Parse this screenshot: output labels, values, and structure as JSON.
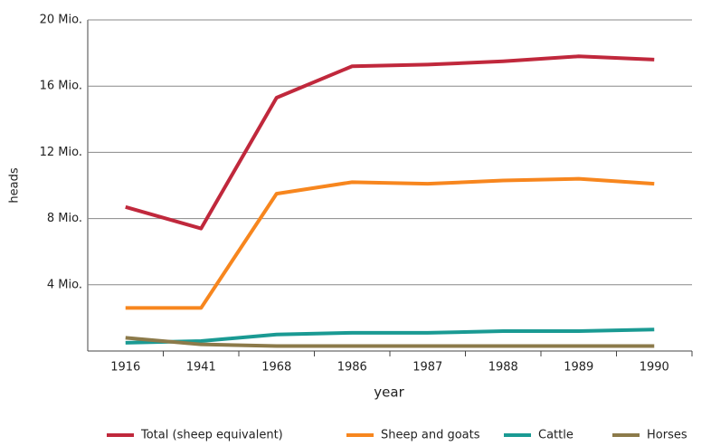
{
  "chart_data": {
    "type": "line",
    "x_label": "year",
    "y_label": "heads",
    "categories": [
      "1916",
      "1941",
      "1968",
      "1986",
      "1987",
      "1988",
      "1989",
      "1990"
    ],
    "series": [
      {
        "name": "Total (sheep equivalent)",
        "color": "#c0283c",
        "values": [
          8700000,
          7400000,
          15300000,
          17200000,
          17300000,
          17500000,
          17800000,
          17600000
        ]
      },
      {
        "name": "Sheep and goats",
        "color": "#f7861e",
        "values": [
          2600000,
          2600000,
          9500000,
          10200000,
          10100000,
          10300000,
          10400000,
          10100000
        ]
      },
      {
        "name": "Cattle",
        "color": "#1a9a93",
        "values": [
          500000,
          600000,
          1000000,
          1100000,
          1100000,
          1200000,
          1200000,
          1300000
        ]
      },
      {
        "name": "Horses",
        "color": "#8c7a4a",
        "values": [
          800000,
          400000,
          300000,
          300000,
          300000,
          300000,
          300000,
          300000
        ]
      }
    ],
    "ylim": [
      0,
      20000000
    ],
    "yticks": [
      {
        "value": 4000000,
        "label": "4 Mio."
      },
      {
        "value": 8000000,
        "label": "8 Mio."
      },
      {
        "value": 12000000,
        "label": "12 Mio."
      },
      {
        "value": 16000000,
        "label": "16 Mio."
      },
      {
        "value": 20000000,
        "label": "20 Mio."
      }
    ],
    "grid": true,
    "legend": "bottom"
  }
}
